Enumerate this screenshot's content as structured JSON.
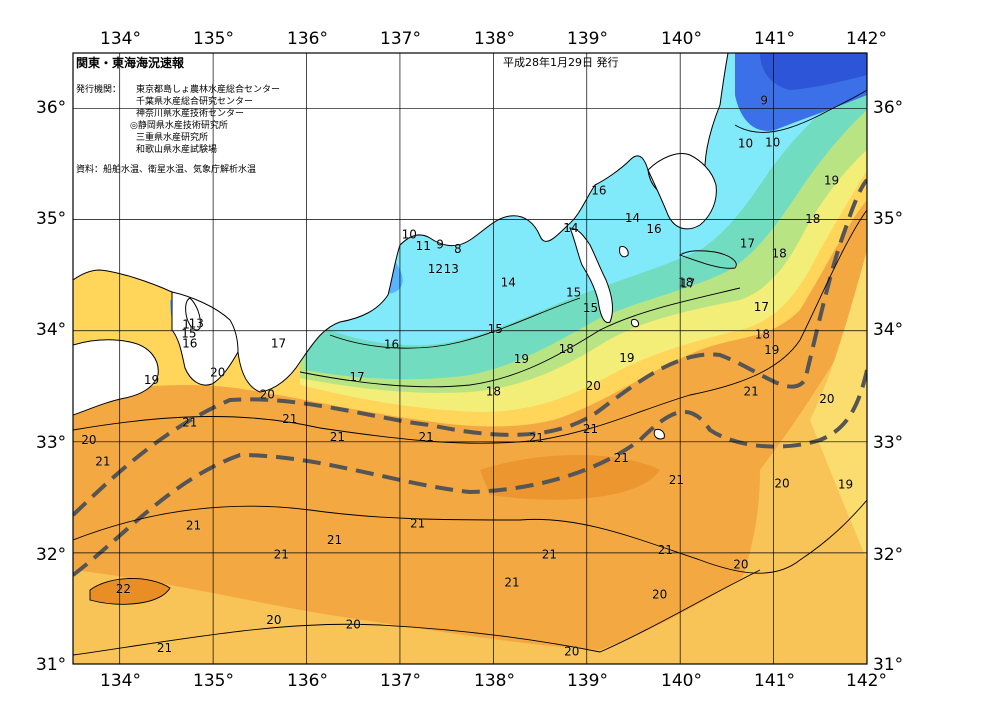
{
  "header": {
    "title": "関東・東海海況速報",
    "date": "平成28年1月29日 発行",
    "issuer_label": "発行機関：",
    "issuers": [
      "東京都島しょ農林水産総合センター",
      "千葉県水産総合研究センター",
      "神奈川県水産技術センター",
      "◎静岡県水産技術研究所",
      "三重県水産研究所",
      "和歌山県水産試験場"
    ],
    "source": "資料：船舶水温、衛星水温、気象庁解析水温"
  },
  "axes": {
    "lon_labels": [
      "134°",
      "135°",
      "136°",
      "137°",
      "138°",
      "139°",
      "140°",
      "141°",
      "142°"
    ],
    "lat_labels": [
      "36°",
      "35°",
      "34°",
      "33°",
      "32°",
      "31°"
    ]
  },
  "map_data": {
    "lon_range": [
      133.5,
      142.0
    ],
    "lat_range": [
      31.0,
      36.5
    ],
    "graticule_step_deg": 1,
    "colors": {
      "land": "#ffffff",
      "coast": "#000000",
      "isotherm": "#000000",
      "kuroshio_axis": "#555555",
      "t9_10": "#2f5fe0",
      "t12": "#4aa0ff",
      "t14": "#7fe8ff",
      "t16": "#6fdcc6",
      "t17": "#a6e28a",
      "t18": "#f0f07a",
      "t19": "#ffd455",
      "t20": "#f8c050",
      "t21": "#f09a2a",
      "t22": "#e0801e"
    },
    "isotherm_labels": [
      {
        "text": "9",
        "lon": 140.9,
        "lat": 36.07
      },
      {
        "text": "10",
        "lon": 140.7,
        "lat": 35.68
      },
      {
        "text": "10",
        "lon": 140.99,
        "lat": 35.69
      },
      {
        "text": "16",
        "lon": 139.13,
        "lat": 35.26
      },
      {
        "text": "14",
        "lon": 139.49,
        "lat": 35.01
      },
      {
        "text": "14",
        "lon": 138.83,
        "lat": 34.92
      },
      {
        "text": "16",
        "lon": 139.72,
        "lat": 34.91
      },
      {
        "text": "17",
        "lon": 140.72,
        "lat": 34.78
      },
      {
        "text": "18",
        "lon": 141.06,
        "lat": 34.69
      },
      {
        "text": "18",
        "lon": 140.06,
        "lat": 34.43
      },
      {
        "text": "17",
        "lon": 140.08,
        "lat": 34.42
      },
      {
        "text": "19",
        "lon": 141.62,
        "lat": 35.35
      },
      {
        "text": "18",
        "lon": 141.42,
        "lat": 35.0
      },
      {
        "text": "10",
        "lon": 137.1,
        "lat": 34.86
      },
      {
        "text": "11",
        "lon": 137.25,
        "lat": 34.76
      },
      {
        "text": "9",
        "lon": 137.43,
        "lat": 34.77
      },
      {
        "text": "8",
        "lon": 137.62,
        "lat": 34.73
      },
      {
        "text": "12",
        "lon": 137.38,
        "lat": 34.55
      },
      {
        "text": "13",
        "lon": 137.55,
        "lat": 34.55
      },
      {
        "text": "14",
        "lon": 138.16,
        "lat": 34.43
      },
      {
        "text": "15",
        "lon": 138.86,
        "lat": 34.34
      },
      {
        "text": "15",
        "lon": 139.04,
        "lat": 34.2
      },
      {
        "text": "15",
        "lon": 138.02,
        "lat": 34.01
      },
      {
        "text": "16",
        "lon": 136.91,
        "lat": 33.87
      },
      {
        "text": "17",
        "lon": 140.87,
        "lat": 34.21
      },
      {
        "text": "18",
        "lon": 140.88,
        "lat": 33.96
      },
      {
        "text": "19",
        "lon": 140.98,
        "lat": 33.82
      },
      {
        "text": "18",
        "lon": 138.78,
        "lat": 33.83
      },
      {
        "text": "19",
        "lon": 138.3,
        "lat": 33.74
      },
      {
        "text": "19",
        "lon": 139.43,
        "lat": 33.75
      },
      {
        "text": "18",
        "lon": 138.0,
        "lat": 33.45
      },
      {
        "text": "20",
        "lon": 139.07,
        "lat": 33.5
      },
      {
        "text": "21",
        "lon": 140.76,
        "lat": 33.45
      },
      {
        "text": "20",
        "lon": 141.57,
        "lat": 33.38
      },
      {
        "text": "17",
        "lon": 135.7,
        "lat": 33.88
      },
      {
        "text": "17",
        "lon": 136.54,
        "lat": 33.58
      },
      {
        "text": "20",
        "lon": 135.05,
        "lat": 33.62
      },
      {
        "text": "20",
        "lon": 135.58,
        "lat": 33.42
      },
      {
        "text": "19",
        "lon": 134.34,
        "lat": 33.55
      },
      {
        "text": "16",
        "lon": 134.75,
        "lat": 33.88
      },
      {
        "text": "15",
        "lon": 134.74,
        "lat": 33.97
      },
      {
        "text": "13",
        "lon": 134.82,
        "lat": 34.06
      },
      {
        "text": "1",
        "lon": 134.71,
        "lat": 34.05
      },
      {
        "text": "20",
        "lon": 133.67,
        "lat": 33.01
      },
      {
        "text": "21",
        "lon": 133.82,
        "lat": 32.82
      },
      {
        "text": "21",
        "lon": 134.75,
        "lat": 33.17
      },
      {
        "text": "21",
        "lon": 135.82,
        "lat": 33.2
      },
      {
        "text": "21",
        "lon": 136.33,
        "lat": 33.04
      },
      {
        "text": "21",
        "lon": 137.28,
        "lat": 33.04
      },
      {
        "text": "21",
        "lon": 138.46,
        "lat": 33.03
      },
      {
        "text": "21",
        "lon": 139.04,
        "lat": 33.11
      },
      {
        "text": "21",
        "lon": 139.37,
        "lat": 32.85
      },
      {
        "text": "21",
        "lon": 139.96,
        "lat": 32.65
      },
      {
        "text": "20",
        "lon": 141.09,
        "lat": 32.62
      },
      {
        "text": "19",
        "lon": 141.77,
        "lat": 32.61
      },
      {
        "text": "21",
        "lon": 134.79,
        "lat": 32.24
      },
      {
        "text": "21",
        "lon": 135.73,
        "lat": 31.98
      },
      {
        "text": "21",
        "lon": 136.3,
        "lat": 32.11
      },
      {
        "text": "21",
        "lon": 137.19,
        "lat": 32.26
      },
      {
        "text": "21",
        "lon": 138.6,
        "lat": 31.98
      },
      {
        "text": "21",
        "lon": 138.2,
        "lat": 31.73
      },
      {
        "text": "21",
        "lon": 139.84,
        "lat": 32.02
      },
      {
        "text": "20",
        "lon": 140.65,
        "lat": 31.89
      },
      {
        "text": "20",
        "lon": 139.78,
        "lat": 31.62
      },
      {
        "text": "22",
        "lon": 134.04,
        "lat": 31.67
      },
      {
        "text": "20",
        "lon": 135.65,
        "lat": 31.39
      },
      {
        "text": "20",
        "lon": 136.5,
        "lat": 31.35
      },
      {
        "text": "21",
        "lon": 134.48,
        "lat": 31.14
      },
      {
        "text": "20",
        "lon": 138.84,
        "lat": 31.11
      }
    ]
  }
}
